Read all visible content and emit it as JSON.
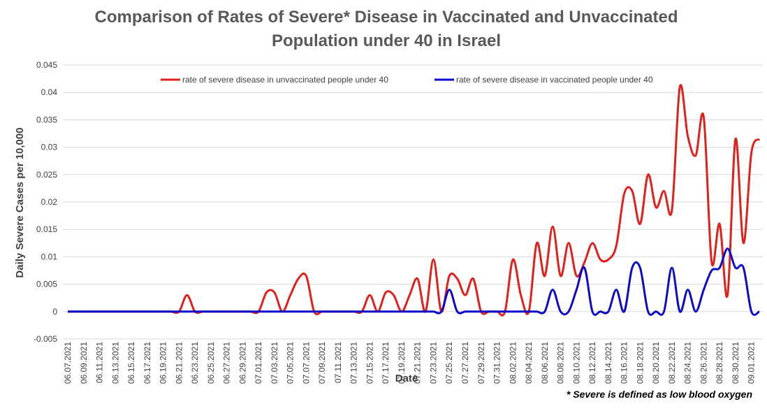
{
  "chart_data": {
    "type": "line",
    "title": "Comparison of Rates of Severe* Disease in Vaccinated and Unvaccinated",
    "subtitle": "Population under 40 in Israel",
    "x_label": "Date",
    "y_label": "Daily Severe Cases per 10,000",
    "annotation": "* Severe is defined as low blood oxygen",
    "categories": [
      "06.07.2021",
      null,
      "06.09.2021",
      null,
      "06.11.2021",
      null,
      "06.13.2021",
      null,
      "06.15.2021",
      null,
      "06.17.2021",
      null,
      "06.19.2021",
      null,
      "06.21.2021",
      null,
      "06.23.2021",
      null,
      "06.25.2021",
      null,
      "06.27.2021",
      null,
      "06.29.2021",
      null,
      "07.01.2021",
      null,
      "07.03.2021",
      null,
      "07.05.2021",
      null,
      "07.07.2021",
      null,
      "07.09.2021",
      null,
      "07.11.2021",
      null,
      "07.13.2021",
      null,
      "07.15.2021",
      null,
      "07.17.2021",
      null,
      "07.19.2021",
      null,
      "07.21.2021",
      null,
      "07.23.2021",
      null,
      "07.25.2021",
      null,
      "07.27.2021",
      null,
      "07.29.2021",
      null,
      "07.31.2021",
      null,
      "08.02.2021",
      null,
      "08.04.2021",
      null,
      "08.06.2021",
      null,
      "08.08.2021",
      null,
      "08.10.2021",
      null,
      "08.12.2021",
      null,
      "08.14.2021",
      null,
      "08.16.2021",
      null,
      "08.18.2021",
      null,
      "08.20.2021",
      null,
      "08.22.2021",
      null,
      "08.24.2021",
      null,
      "08.26.2021",
      null,
      "08.28.2021",
      null,
      "08.30.2021",
      null,
      "09.01.2021",
      null
    ],
    "series": [
      {
        "name": "rate of severe disease in unvaccinated people under 40",
        "color": "#e0201b",
        "values": [
          0,
          0,
          0,
          0,
          0,
          0,
          0,
          0,
          0,
          0,
          0,
          0,
          0,
          0,
          0,
          0.003,
          0,
          0,
          0,
          0,
          0,
          0,
          0,
          0,
          0,
          0.0035,
          0.0035,
          0,
          0.003,
          0.006,
          0.0065,
          0,
          0,
          0,
          0,
          0,
          0,
          0,
          0.003,
          0,
          0.0035,
          0.003,
          0,
          0.003,
          0.006,
          0,
          0.0095,
          0,
          0.0065,
          0.006,
          0.003,
          0.006,
          0,
          0,
          0,
          0,
          0.0095,
          0.003,
          0,
          0.0125,
          0.0065,
          0.0155,
          0.0065,
          0.0125,
          0.0065,
          0.009,
          0.0125,
          0.0095,
          0.0095,
          0.012,
          0.0215,
          0.022,
          0.016,
          0.025,
          0.019,
          0.022,
          0.0185,
          0.041,
          0.032,
          0.0285,
          0.0355,
          0.009,
          0.016,
          0.003,
          0.0315,
          0.0125,
          0.029,
          0.0315
        ]
      },
      {
        "name": "rate of severe disease in vaccinated people under 40",
        "color": "#0a0ac8",
        "values": [
          0,
          0,
          0,
          0,
          0,
          0,
          0,
          0,
          0,
          0,
          0,
          0,
          0,
          0,
          0,
          0,
          0,
          0,
          0,
          0,
          0,
          0,
          0,
          0,
          0,
          0,
          0,
          0,
          0,
          0,
          0,
          0,
          0,
          0,
          0,
          0,
          0,
          0,
          0,
          0,
          0,
          0,
          0,
          0,
          0,
          0,
          0,
          0,
          0.004,
          0,
          0,
          0,
          0,
          0,
          0,
          0,
          0,
          0,
          0,
          0,
          0,
          0.004,
          0,
          0,
          0.004,
          0.008,
          0,
          0,
          0,
          0.004,
          0,
          0.008,
          0.008,
          0,
          0,
          0,
          0.008,
          0,
          0.004,
          0,
          0.004,
          0.0075,
          0.008,
          0.0115,
          0.008,
          0.008,
          0,
          0
        ]
      }
    ],
    "ylim": [
      -0.005,
      0.045
    ],
    "yticks": [
      -0.005,
      0,
      0.005,
      0.01,
      0.015,
      0.02,
      0.025,
      0.03,
      0.035,
      0.04,
      0.045
    ],
    "grid": true
  }
}
